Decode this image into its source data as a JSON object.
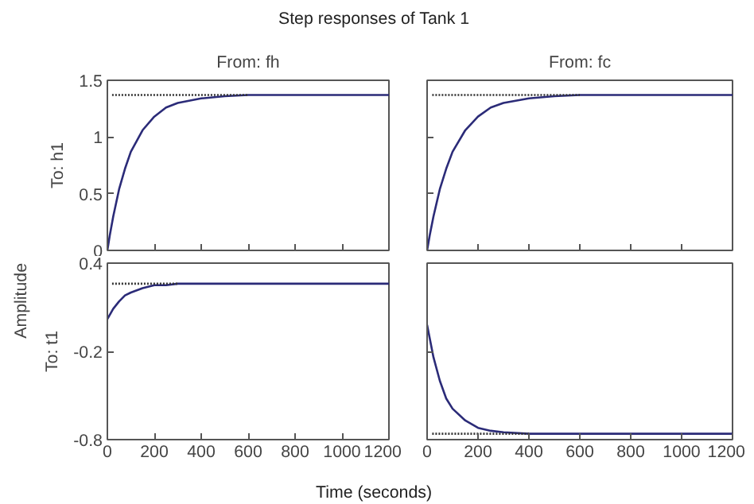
{
  "chart_data": [
    {
      "type": "line",
      "title": "Step responses of Tank 1",
      "subtitle": "From: fh",
      "ylabel": "To: h1",
      "xlim": [
        0,
        1200
      ],
      "ylim": [
        0,
        1.5
      ],
      "xticks": [
        0,
        200,
        400,
        600,
        800,
        1000,
        1200
      ],
      "yticks": [
        0,
        0.5,
        1,
        1.5
      ],
      "tick_labels": "y",
      "grid": false,
      "series": [
        {
          "color": "#2b2b78",
          "x": [
            0,
            10,
            25,
            50,
            75,
            100,
            150,
            200,
            250,
            300,
            400,
            500,
            600,
            800,
            1000,
            1200
          ],
          "values": [
            0,
            0.13,
            0.3,
            0.54,
            0.72,
            0.87,
            1.06,
            1.18,
            1.26,
            1.3,
            1.34,
            1.36,
            1.37,
            1.37,
            1.37,
            1.37
          ]
        },
        {
          "color": "#333333",
          "line_style": "dotted",
          "x": [
            20,
            600
          ],
          "values": [
            1.37,
            1.37
          ]
        }
      ]
    },
    {
      "type": "line",
      "subtitle": "From: fc",
      "xlim": [
        0,
        1200
      ],
      "ylim": [
        0,
        1.5
      ],
      "xticks": [
        0,
        200,
        400,
        600,
        800,
        1000,
        1200
      ],
      "yticks": [
        0,
        0.5,
        1,
        1.5
      ],
      "tick_labels": false,
      "grid": false,
      "series": [
        {
          "color": "#2b2b78",
          "x": [
            0,
            10,
            25,
            50,
            75,
            100,
            150,
            200,
            250,
            300,
            400,
            500,
            600,
            800,
            1000,
            1200
          ],
          "values": [
            0,
            0.13,
            0.3,
            0.54,
            0.72,
            0.87,
            1.06,
            1.18,
            1.26,
            1.3,
            1.34,
            1.36,
            1.37,
            1.37,
            1.37,
            1.37
          ]
        },
        {
          "color": "#333333",
          "line_style": "dotted",
          "x": [
            20,
            600
          ],
          "values": [
            1.37,
            1.37
          ]
        }
      ]
    },
    {
      "type": "line",
      "ylabel": "To: t1",
      "xlabel": "Time (seconds)",
      "annotations": [
        "Amplitude"
      ],
      "xlim": [
        0,
        1200
      ],
      "ylim": [
        -0.8,
        0.4
      ],
      "xticks": [
        0,
        200,
        400,
        600,
        800,
        1000,
        1200
      ],
      "yticks": [
        -0.8,
        -0.2,
        0.4
      ],
      "grid": false,
      "series": [
        {
          "color": "#2b2b78",
          "x": [
            0,
            25,
            50,
            75,
            100,
            150,
            200,
            250,
            300,
            400,
            600,
            800,
            1000,
            1200
          ],
          "values": [
            0.02,
            0.09,
            0.14,
            0.18,
            0.2,
            0.23,
            0.25,
            0.25,
            0.26,
            0.26,
            0.26,
            0.26,
            0.26,
            0.26
          ]
        },
        {
          "color": "#333333",
          "line_style": "dotted",
          "x": [
            20,
            300
          ],
          "values": [
            0.26,
            0.26
          ]
        }
      ]
    },
    {
      "type": "line",
      "xlim": [
        0,
        1200
      ],
      "ylim": [
        -0.8,
        0.4
      ],
      "xticks": [
        0,
        200,
        400,
        600,
        800,
        1000,
        1200
      ],
      "yticks": [
        -0.8,
        -0.2,
        0.4
      ],
      "tick_labels": "x",
      "grid": false,
      "series": [
        {
          "color": "#2b2b78",
          "x": [
            0,
            25,
            50,
            75,
            100,
            150,
            200,
            250,
            300,
            400,
            600,
            800,
            1000,
            1200
          ],
          "values": [
            -0.02,
            -0.24,
            -0.4,
            -0.52,
            -0.59,
            -0.67,
            -0.72,
            -0.74,
            -0.75,
            -0.76,
            -0.76,
            -0.76,
            -0.76,
            -0.76
          ]
        },
        {
          "color": "#333333",
          "line_style": "dotted",
          "x": [
            20,
            400
          ],
          "values": [
            -0.76,
            -0.76
          ]
        }
      ]
    }
  ]
}
